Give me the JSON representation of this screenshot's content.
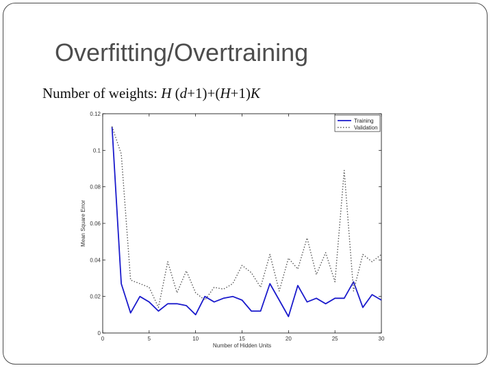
{
  "slide": {
    "title": "Overfitting/Overtraining",
    "formula_prefix": "Number of weights: ",
    "formula": {
      "H1": "H",
      "paren_open": " (",
      "d": "d",
      "part2": "+1)+(",
      "H2": "H",
      "part3": "+1)",
      "K": "K"
    }
  },
  "chart_data": {
    "type": "line",
    "title": "",
    "xlabel": "Number of Hidden Units",
    "ylabel": "Mean Square Error",
    "xlim": [
      0,
      30
    ],
    "ylim": [
      0,
      0.12
    ],
    "xticks": [
      0,
      5,
      10,
      15,
      20,
      25,
      30
    ],
    "yticks": [
      0,
      0.02,
      0.04,
      0.06,
      0.08,
      0.1,
      0.12
    ],
    "ytick_labels": [
      "0",
      "0.02",
      "0.04",
      "0.06",
      "0.08",
      "0.1",
      "0.12"
    ],
    "legend_position": "top-right",
    "x": [
      1,
      2,
      3,
      4,
      5,
      6,
      7,
      8,
      9,
      10,
      11,
      12,
      13,
      14,
      15,
      16,
      17,
      18,
      19,
      20,
      21,
      22,
      23,
      24,
      25,
      26,
      27,
      28,
      29,
      30
    ],
    "series": [
      {
        "name": "Training",
        "style": "solid",
        "color": "#1a1acc",
        "values": [
          0.113,
          0.027,
          0.011,
          0.02,
          0.017,
          0.012,
          0.016,
          0.016,
          0.015,
          0.01,
          0.02,
          0.017,
          0.019,
          0.02,
          0.018,
          0.012,
          0.012,
          0.027,
          0.018,
          0.009,
          0.026,
          0.017,
          0.019,
          0.016,
          0.019,
          0.019,
          0.028,
          0.014,
          0.021,
          0.018
        ]
      },
      {
        "name": "Validation",
        "style": "dotted",
        "color": "#555555",
        "values": [
          0.113,
          0.098,
          0.029,
          0.027,
          0.025,
          0.014,
          0.039,
          0.022,
          0.034,
          0.022,
          0.018,
          0.025,
          0.024,
          0.027,
          0.037,
          0.033,
          0.025,
          0.043,
          0.023,
          0.041,
          0.035,
          0.052,
          0.032,
          0.044,
          0.028,
          0.089,
          0.023,
          0.043,
          0.039,
          0.043
        ]
      }
    ]
  }
}
